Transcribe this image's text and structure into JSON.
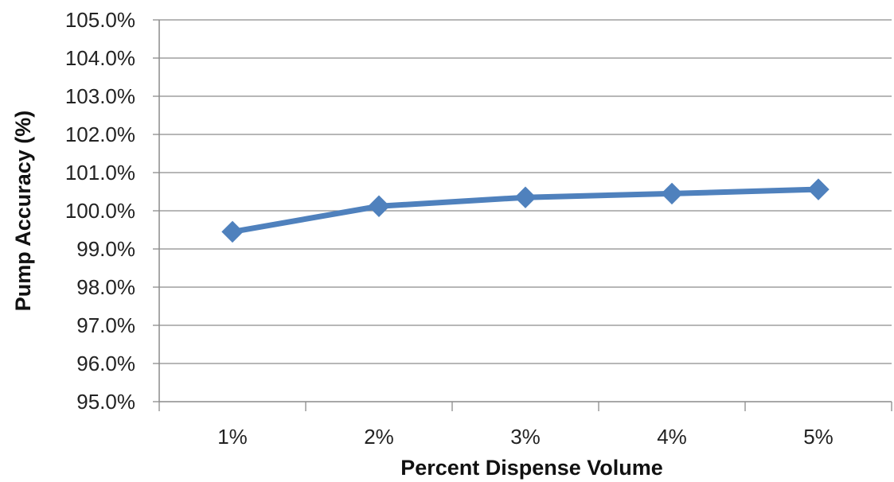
{
  "chart_data": {
    "type": "line",
    "title": "",
    "xlabel": "Percent Dispense Volume",
    "ylabel": "Pump Accuracy (%)",
    "categories": [
      "1%",
      "2%",
      "3%",
      "4%",
      "5%"
    ],
    "series": [
      {
        "values": [
          99.45,
          100.12,
          100.35,
          100.45,
          100.56
        ]
      }
    ],
    "ylim": [
      95.0,
      105.0
    ],
    "ytick_step": 1.0,
    "ytick_labels": [
      "95.0%",
      "96.0%",
      "97.0%",
      "98.0%",
      "99.0%",
      "100.0%",
      "101.0%",
      "102.0%",
      "103.0%",
      "104.0%",
      "105.0%"
    ],
    "grid": true,
    "legend": "none",
    "colors": {
      "series": "#4f81bd",
      "grid": "#8c8c8c",
      "axis": "#8c8c8c"
    }
  }
}
